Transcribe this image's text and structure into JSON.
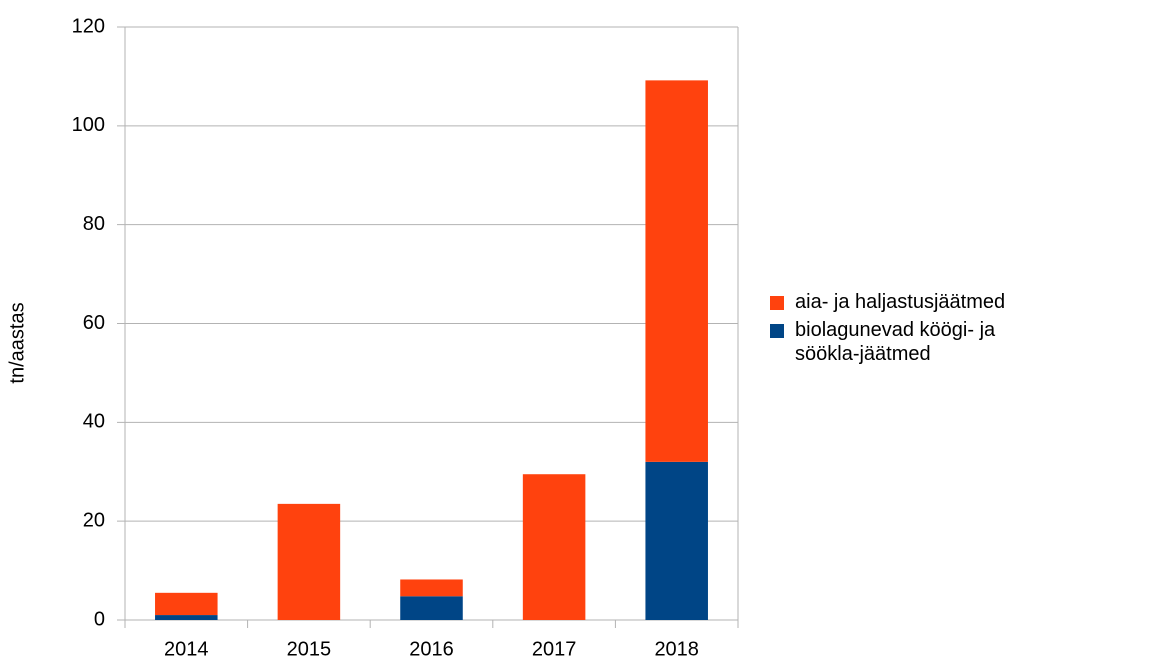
{
  "chart_data": {
    "type": "stacked_bar",
    "y_label": "tn/aastas",
    "categories": [
      "2014",
      "2015",
      "2016",
      "2017",
      "2018"
    ],
    "series": [
      {
        "name": "biolagunevad köögi- ja söökla-jäätmed",
        "color": "#004586",
        "values": [
          1,
          0,
          4.8,
          0,
          32
        ]
      },
      {
        "name": "aia- ja haljastusjäätmed",
        "color": "#ff420e",
        "values": [
          4.5,
          23.5,
          3.4,
          29.5,
          77.2
        ]
      }
    ],
    "ylim": [
      0,
      120
    ],
    "yticks": [
      0,
      20,
      40,
      60,
      80,
      100,
      120
    ],
    "grid": true,
    "legend": "right"
  }
}
